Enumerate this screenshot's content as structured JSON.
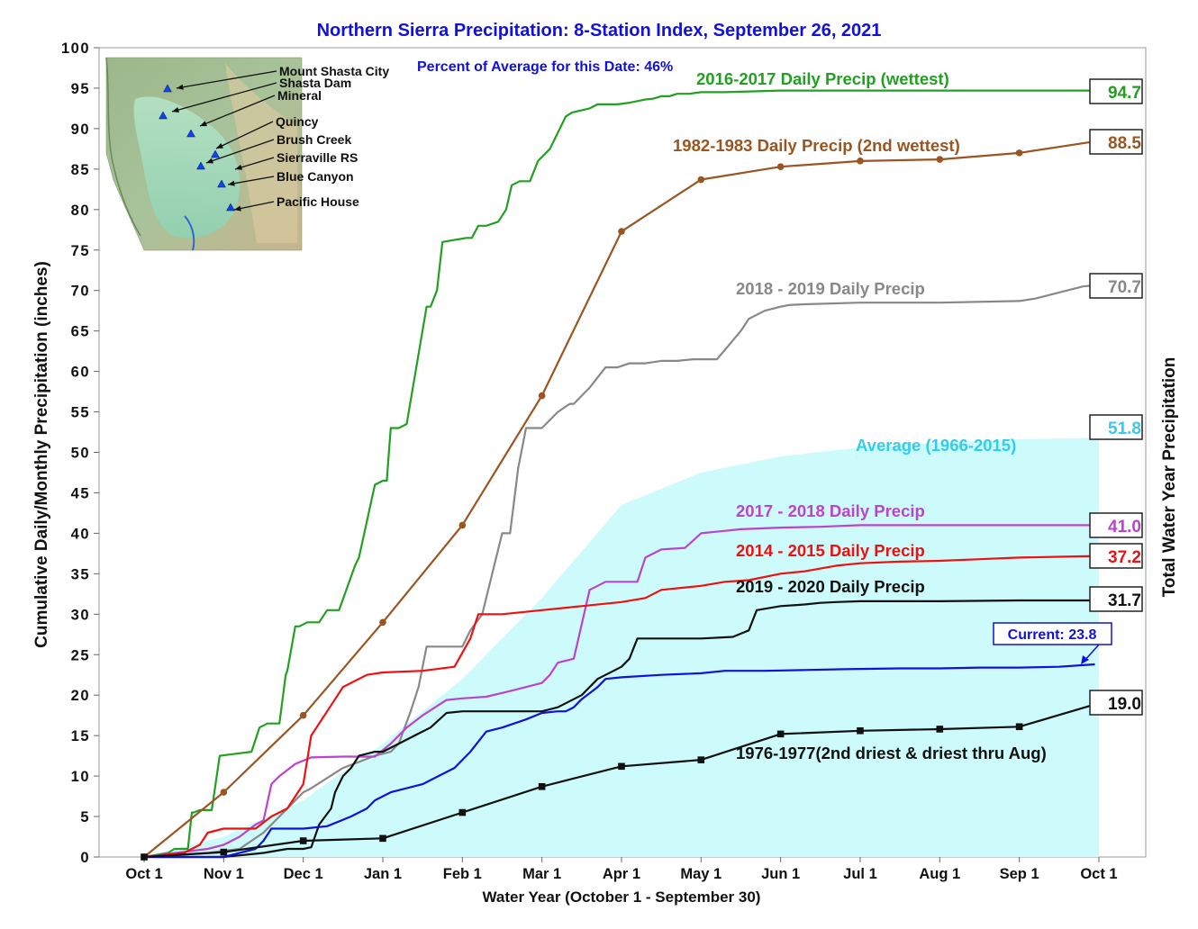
{
  "chart_data": {
    "type": "line",
    "title": "Northern Sierra Precipitation: 8-Station Index, September 26, 2021",
    "subtitle": "Percent of Average for this Date: 46%",
    "xlabel": "Water Year (October 1 - September 30)",
    "ylabel": "Cumulative Daily/Monthly Precipitation (inches)",
    "y2label": "Total Water Year Precipitation",
    "xlim": [
      0,
      12.4
    ],
    "ylim": [
      0,
      100
    ],
    "xticks": [
      {
        "x": 0,
        "label": "Oct 1"
      },
      {
        "x": 1,
        "label": "Nov 1"
      },
      {
        "x": 2,
        "label": "Dec 1"
      },
      {
        "x": 3,
        "label": "Jan 1"
      },
      {
        "x": 4,
        "label": "Feb 1"
      },
      {
        "x": 5,
        "label": "Mar 1"
      },
      {
        "x": 6,
        "label": "Apr 1"
      },
      {
        "x": 7,
        "label": "May 1"
      },
      {
        "x": 8,
        "label": "Jun 1"
      },
      {
        "x": 9,
        "label": "Jul 1"
      },
      {
        "x": 10,
        "label": "Aug 1"
      },
      {
        "x": 11,
        "label": "Sep 1"
      },
      {
        "x": 12,
        "label": "Oct 1"
      }
    ],
    "yticks": [
      "0",
      "5",
      "10",
      "15",
      "20",
      "25",
      "30",
      "35",
      "40",
      "45",
      "50",
      "55",
      "60",
      "65",
      "70",
      "75",
      "80",
      "85",
      "90",
      "95",
      "100"
    ],
    "average": {
      "name": "Average (1966-2015)",
      "total": "51.8",
      "color": "#cdfafa",
      "label_color": "#33ccee",
      "x": [
        0,
        1,
        2,
        3,
        4,
        5,
        6,
        7,
        8,
        9,
        10,
        11,
        12
      ],
      "y": [
        0,
        2.5,
        7,
        14,
        22,
        32,
        43.5,
        47.5,
        49.5,
        50.6,
        51.2,
        51.6,
        51.8
      ]
    },
    "series": [
      {
        "name": "2016-2017 Daily Precip (wettest)",
        "total": "94.7",
        "color": "#22a022",
        "markers": false,
        "x": [
          0,
          0.3,
          0.38,
          0.55,
          0.6,
          0.62,
          0.7,
          0.85,
          0.95,
          1.35,
          1.45,
          1.55,
          1.7,
          1.78,
          1.8,
          1.9,
          1.95,
          2.05,
          2.2,
          2.3,
          2.45,
          2.65,
          2.7,
          2.9,
          3.0,
          3.05,
          3.1,
          3.2,
          3.3,
          3.55,
          3.6,
          3.68,
          3.75,
          4.05,
          4.12,
          4.2,
          4.3,
          4.45,
          4.55,
          4.62,
          4.72,
          4.85,
          4.95,
          5.1,
          5.3,
          5.38,
          5.6,
          5.7,
          5.8,
          5.95,
          6.1,
          6.25,
          6.3,
          6.4,
          6.5,
          6.6,
          6.7,
          6.85,
          7.0,
          7.3,
          8.0,
          8.1,
          8.3,
          8.45,
          9.0,
          10.0,
          11.0,
          12.0
        ],
        "y": [
          0,
          0.5,
          1,
          1,
          5.5,
          5.5,
          5.8,
          5.8,
          12.5,
          13,
          16,
          16.5,
          16.5,
          22.5,
          23,
          28.5,
          28.5,
          29,
          29,
          30.5,
          30.5,
          36,
          37,
          46,
          46.5,
          46.5,
          53,
          53,
          53.5,
          68,
          68,
          70,
          76,
          76.5,
          76.5,
          78,
          78,
          78.5,
          80,
          83,
          83.5,
          83.5,
          86,
          87.5,
          91.5,
          92,
          92.5,
          93,
          93,
          93,
          93.2,
          93.5,
          93.6,
          93.7,
          94,
          94,
          94.3,
          94.3,
          94.5,
          94.5,
          94.7,
          94.7,
          94.7,
          94.7,
          94.7,
          94.7,
          94.7,
          94.7
        ]
      },
      {
        "name": "1982-1983 Daily Precip (2nd wettest)",
        "total": "88.5",
        "color": "#9a5522",
        "markers": "circle",
        "x": [
          0,
          1,
          2,
          3,
          4,
          5,
          6,
          7,
          8,
          9,
          10,
          11,
          12
        ],
        "y": [
          0,
          8,
          17.5,
          29,
          41,
          57,
          77.3,
          83.7,
          85.3,
          86,
          86.2,
          87,
          88.5
        ]
      },
      {
        "name": "2018 - 2019 Daily Precip",
        "total": "70.7",
        "color": "#888888",
        "markers": false,
        "x": [
          0,
          0.8,
          1.2,
          1.5,
          1.8,
          2.0,
          2.1,
          2.5,
          2.9,
          3.1,
          3.2,
          3.35,
          3.45,
          3.55,
          3.7,
          3.8,
          4.0,
          4.1,
          4.25,
          4.3,
          4.5,
          4.6,
          4.7,
          4.8,
          5.0,
          5.2,
          5.35,
          5.4,
          5.6,
          5.8,
          5.95,
          6.1,
          6.3,
          6.5,
          6.7,
          6.9,
          7.2,
          7.5,
          7.6,
          7.8,
          8.0,
          8.1,
          8.3,
          9.0,
          10.0,
          11.0,
          11.2,
          11.4,
          11.6,
          11.8,
          12.0
        ],
        "y": [
          0,
          0.5,
          1,
          3,
          6,
          8,
          8.5,
          11,
          12.5,
          13,
          14,
          18,
          21,
          26,
          26,
          26,
          26,
          28,
          30,
          32,
          40,
          40,
          48,
          53,
          53,
          55,
          56,
          56,
          58,
          60.5,
          60.5,
          61,
          61,
          61.3,
          61.3,
          61.5,
          61.5,
          65,
          66.5,
          67.5,
          68,
          68.2,
          68.3,
          68.5,
          68.5,
          68.7,
          69,
          69.5,
          70,
          70.5,
          70.7
        ]
      },
      {
        "name": "2017 - 2018 Daily Precip",
        "total": "41.0",
        "color": "#bb44cc",
        "markers": false,
        "x": [
          0,
          0.8,
          1.0,
          1.2,
          1.4,
          1.5,
          1.6,
          1.7,
          1.9,
          2.1,
          2.5,
          2.9,
          3.1,
          3.3,
          3.5,
          3.8,
          4.0,
          4.3,
          4.6,
          4.8,
          5.0,
          5.1,
          5.2,
          5.4,
          5.6,
          5.8,
          6.2,
          6.3,
          6.5,
          6.8,
          7.0,
          7.3,
          7.5,
          8.0,
          8.5,
          9.0,
          10.0,
          11.0,
          12.0
        ],
        "y": [
          0,
          1,
          1.5,
          2.5,
          4,
          4.5,
          9,
          10,
          11.5,
          12.3,
          12.4,
          12.4,
          14,
          16,
          17.5,
          19.4,
          19.6,
          19.8,
          20.5,
          21,
          21.5,
          22.5,
          24,
          24.5,
          33,
          34,
          34,
          37,
          38,
          38.2,
          40,
          40.3,
          40.5,
          40.7,
          40.8,
          41,
          41,
          41,
          41
        ]
      },
      {
        "name": "2014 - 2015 Daily Precip",
        "total": "37.2",
        "color": "#ee1111",
        "markers": false,
        "x": [
          0,
          0.5,
          0.7,
          0.8,
          1.0,
          1.2,
          1.4,
          1.6,
          1.8,
          2.0,
          2.1,
          2.3,
          2.5,
          2.8,
          3.0,
          3.5,
          3.9,
          4.1,
          4.2,
          4.5,
          5.0,
          5.3,
          5.5,
          6.0,
          6.3,
          6.5,
          7.0,
          7.3,
          7.6,
          8.0,
          8.3,
          8.7,
          9.0,
          9.5,
          10.0,
          10.5,
          11.0,
          11.5,
          12.0
        ],
        "y": [
          0,
          0.5,
          1.5,
          3,
          3.5,
          3.5,
          3.5,
          5,
          6,
          9,
          15,
          18,
          21,
          22.5,
          22.8,
          23,
          23.5,
          27,
          30,
          30,
          30.5,
          30.8,
          31,
          31.5,
          32,
          33,
          33.5,
          34,
          34.2,
          35,
          35.3,
          36,
          36.3,
          36.5,
          36.6,
          36.8,
          37,
          37.1,
          37.2
        ]
      },
      {
        "name": "2019 - 2020 Daily Precip",
        "total": "31.7",
        "color": "#111111",
        "markers": false,
        "x": [
          0,
          1.0,
          1.5,
          1.8,
          2.0,
          2.1,
          2.2,
          2.35,
          2.4,
          2.5,
          2.6,
          2.7,
          2.9,
          3.0,
          3.2,
          3.4,
          3.6,
          3.8,
          4.0,
          4.5,
          5.0,
          5.2,
          5.3,
          5.5,
          5.7,
          6.0,
          6.1,
          6.2,
          7.0,
          7.4,
          7.6,
          7.7,
          8.0,
          8.3,
          8.5,
          8.7,
          9.0,
          10.0,
          11.0,
          12.0
        ],
        "y": [
          0,
          0,
          0.5,
          1,
          1,
          1.2,
          4,
          6,
          8,
          10,
          11,
          12.5,
          13,
          13,
          14,
          15,
          16,
          17.8,
          18,
          18,
          18,
          18.5,
          19,
          20,
          22,
          23.5,
          24.5,
          27,
          27,
          27.2,
          28,
          30.5,
          31,
          31.2,
          31.4,
          31.5,
          31.6,
          31.6,
          31.7,
          31.7
        ]
      },
      {
        "name": "Current",
        "total": "23.8",
        "color": "#1111dd",
        "markers": false,
        "x": [
          0,
          1.0,
          1.4,
          1.5,
          1.6,
          2.0,
          2.1,
          2.3,
          2.6,
          2.8,
          2.9,
          3.1,
          3.3,
          3.5,
          3.7,
          3.9,
          4.1,
          4.3,
          4.5,
          4.8,
          5.0,
          5.2,
          5.3,
          5.4,
          5.5,
          5.7,
          5.8,
          6.0,
          6.5,
          7.0,
          7.3,
          7.8,
          8.3,
          8.8,
          9.5,
          10.0,
          10.5,
          11.0,
          11.5,
          11.8,
          11.95
        ],
        "y": [
          0,
          0,
          1,
          2,
          3.5,
          3.5,
          3.6,
          3.8,
          5,
          6,
          7,
          8,
          8.5,
          9,
          10,
          11,
          13,
          15.5,
          16,
          17,
          17.8,
          18,
          18,
          18.5,
          19.5,
          21,
          22,
          22.2,
          22.5,
          22.7,
          23,
          23,
          23.1,
          23.2,
          23.3,
          23.3,
          23.4,
          23.4,
          23.5,
          23.7,
          23.8
        ]
      },
      {
        "name": "1976-1977(2nd driest & driest thru Aug)",
        "total": "19.0",
        "color": "#111111",
        "markers": "square",
        "x": [
          0,
          1,
          2,
          3,
          4,
          5,
          6,
          7,
          8,
          9,
          10,
          11,
          12
        ],
        "y": [
          0,
          0.6,
          2,
          2.3,
          5.5,
          8.7,
          11.2,
          12,
          15.2,
          15.6,
          15.8,
          16.1,
          19.0
        ]
      }
    ],
    "current_label": "Current: 23.8",
    "inset_map": {
      "stations": [
        "Mount Shasta City",
        "Shasta Dam",
        "Mineral",
        "Quincy",
        "Brush Creek",
        "Sierraville RS",
        "Blue Canyon",
        "Pacific House"
      ]
    }
  }
}
